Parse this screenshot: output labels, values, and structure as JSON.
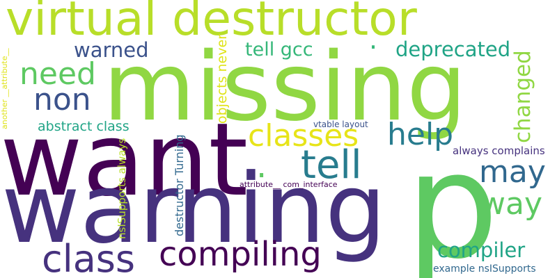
{
  "colors": {
    "dark_purple": "#440154",
    "indigo": "#46327e",
    "slate_blue": "#3b528b",
    "steel_blue": "#31688e",
    "teal_blue": "#287c8e",
    "teal": "#21918c",
    "sea_green": "#20a486",
    "green": "#35b779",
    "light_green": "#5ec962",
    "lime": "#90d743",
    "yellow_green": "#b8de29",
    "yellow": "#dfe318",
    "bright_yellow": "#e7e419"
  },
  "words": {
    "missing": "missing",
    "want": "want",
    "warning": "warning",
    "p": "p",
    "virtual_destructor": "virtual destructor",
    "class": "class",
    "compiling": "compiling",
    "tell": "tell",
    "classes": "classes",
    "need": "need",
    "non": "non",
    "help": "help",
    "may": "may",
    "way": "way",
    "warned": "warned",
    "tell_gcc": "tell gcc",
    "deprecated": "deprecated",
    "changed": "changed",
    "compiler": "compiler",
    "abstract_class": "abstract class",
    "objects_never": "objects never",
    "attribute_another": "another __attribute__",
    "vtable_layout": "vtable layout",
    "always_complains": "always complains",
    "attribute_com_interface": "__attribute__ com_interface",
    "destructor_turning": "destructor Turning",
    "nsisupports_always": "nsISupports always",
    "example_nsisupports": "example nsISupports",
    "dot": "."
  }
}
